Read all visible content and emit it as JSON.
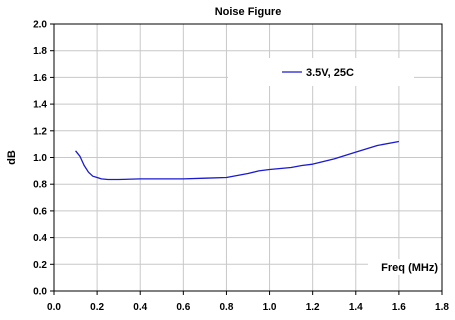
{
  "chart_data": {
    "type": "line",
    "title": "Noise Figure",
    "xlabel": "Freq (MHz)",
    "ylabel": "dB",
    "xlim": [
      0.0,
      1.8
    ],
    "ylim": [
      0.0,
      2.0
    ],
    "xticks": [
      "0.0",
      "0.2",
      "0.4",
      "0.6",
      "0.8",
      "1.0",
      "1.2",
      "1.4",
      "1.6",
      "1.8"
    ],
    "yticks": [
      "0.0",
      "0.2",
      "0.4",
      "0.6",
      "0.8",
      "1.0",
      "1.2",
      "1.4",
      "1.6",
      "1.8",
      "2.0"
    ],
    "grid": true,
    "legend_position": "top-right",
    "series": [
      {
        "name": "3.5V, 25C",
        "color": "#1a1ad0",
        "x": [
          0.1,
          0.12,
          0.14,
          0.16,
          0.18,
          0.2,
          0.22,
          0.25,
          0.3,
          0.4,
          0.5,
          0.6,
          0.7,
          0.8,
          0.85,
          0.9,
          0.95,
          1.0,
          1.1,
          1.15,
          1.2,
          1.25,
          1.3,
          1.4,
          1.5,
          1.6
        ],
        "y": [
          1.05,
          1.01,
          0.94,
          0.89,
          0.86,
          0.85,
          0.84,
          0.835,
          0.835,
          0.84,
          0.84,
          0.84,
          0.845,
          0.85,
          0.865,
          0.88,
          0.9,
          0.91,
          0.925,
          0.94,
          0.95,
          0.97,
          0.99,
          1.04,
          1.09,
          1.12
        ]
      }
    ]
  }
}
